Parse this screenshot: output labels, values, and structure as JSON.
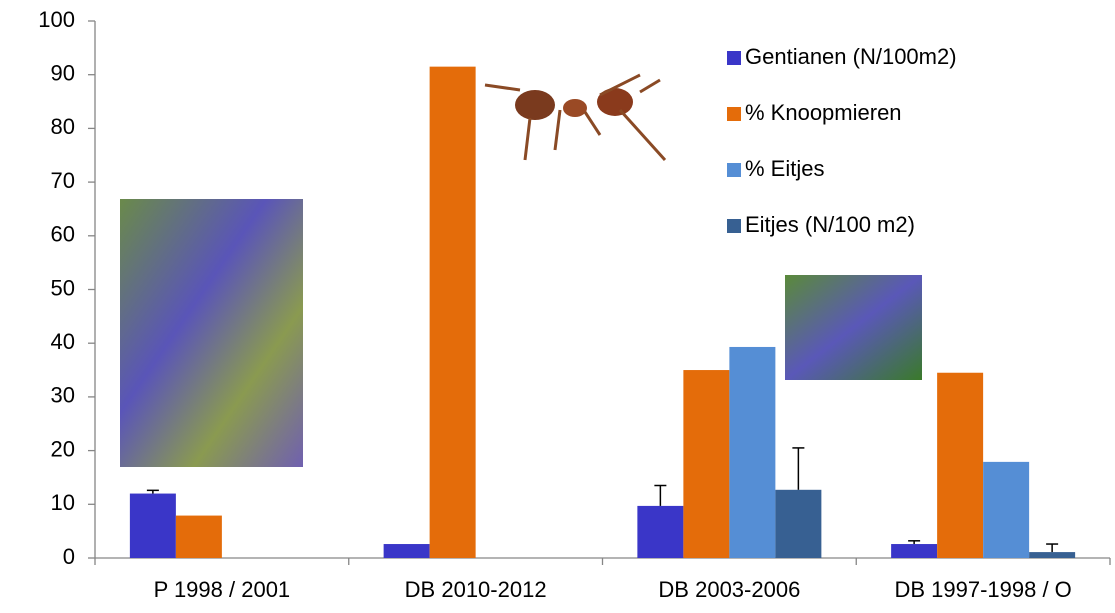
{
  "chart_data": {
    "type": "bar",
    "categories": [
      "P 1998 / 2001",
      "DB 2010-2012",
      "DB 2003-2006",
      "DB 1997-1998 / O"
    ],
    "series": [
      {
        "name": "Gentianen (N/100m2)",
        "color": "#3a36c8",
        "values": [
          12,
          2.6,
          9.7,
          2.6
        ],
        "errors": [
          0.6,
          null,
          3.8,
          0.6
        ]
      },
      {
        "name": "% Knoopmieren",
        "color": "#e46c0a",
        "values": [
          7.9,
          91.5,
          35,
          34.5
        ],
        "errors": [
          null,
          null,
          null,
          null
        ]
      },
      {
        "name": "% Eitjes",
        "color": "#558ed5",
        "values": [
          null,
          null,
          39.3,
          17.9
        ],
        "errors": [
          null,
          null,
          null,
          null
        ]
      },
      {
        "name": "Eitjes (N/100 m2)",
        "color": "#376092",
        "values": [
          null,
          null,
          12.7,
          1.1
        ],
        "errors": [
          null,
          null,
          7.8,
          1.5
        ]
      }
    ],
    "ylim": [
      0,
      100
    ],
    "yticks": [
      0,
      10,
      20,
      30,
      40,
      50,
      60,
      70,
      80,
      90,
      100
    ],
    "grid": false,
    "legend": "top-right"
  }
}
